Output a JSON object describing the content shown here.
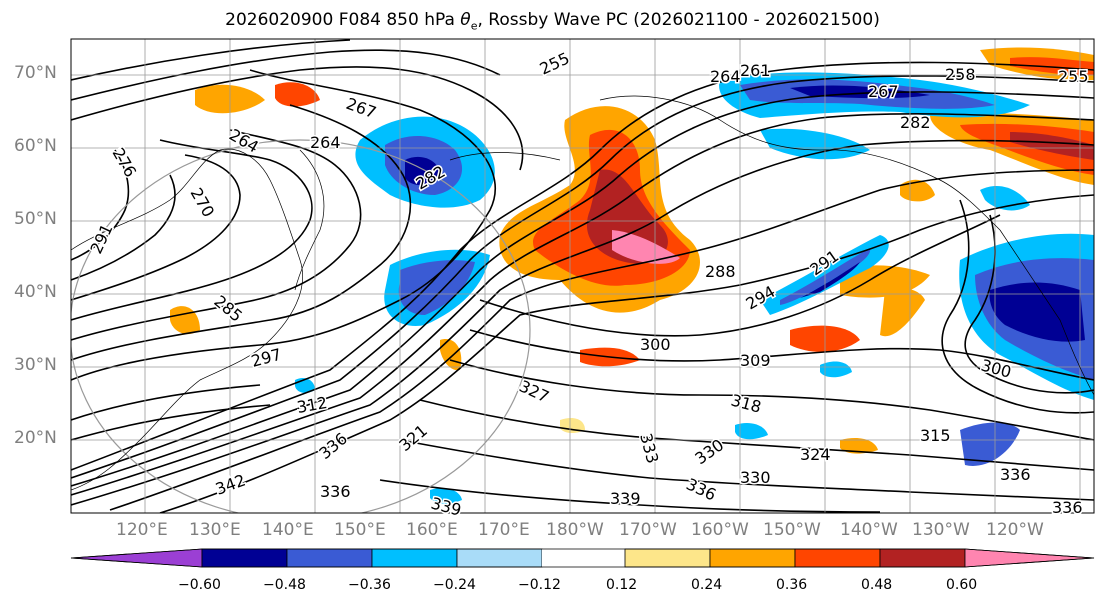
{
  "title": {
    "prefix": "2026020900 F084 850 hPa ",
    "theta_sym": "θ",
    "theta_sub": "e",
    "suffix": ", Rossby Wave PC (2026021100 - 2026021500)"
  },
  "map": {
    "lat_labels": [
      "70°N",
      "60°N",
      "50°N",
      "40°N",
      "30°N",
      "20°N"
    ],
    "lon_labels": [
      "120°E",
      "130°E",
      "140°E",
      "150°E",
      "160°E",
      "170°E",
      "180°W",
      "170°W",
      "160°W",
      "150°W",
      "140°W",
      "130°W",
      "120°W"
    ],
    "contour_labels": [
      "255",
      "258",
      "255",
      "261",
      "264",
      "267",
      "267",
      "264",
      "264",
      "276",
      "270",
      "282",
      "282",
      "291",
      "288",
      "285",
      "291",
      "294",
      "297",
      "300",
      "300",
      "309",
      "312",
      "318",
      "315",
      "321",
      "327",
      "324",
      "330",
      "330",
      "333",
      "336",
      "336",
      "336",
      "339",
      "336",
      "339",
      "342",
      "336"
    ],
    "contour_color": "#000000",
    "shading_note": "Rossby Wave PC anomaly shading"
  },
  "colorbar": {
    "ticks": [
      "−0.60",
      "−0.48",
      "−0.36",
      "−0.24",
      "−0.12",
      "0.12",
      "0.24",
      "0.36",
      "0.48",
      "0.60"
    ],
    "colors": [
      "#9b3fd4",
      "#000094",
      "#3a5bd4",
      "#00bfff",
      "#a9dcf8",
      "#ffffff",
      "#fde68a",
      "#ffa500",
      "#ff4500",
      "#b22222",
      "#ff85b0"
    ]
  }
}
